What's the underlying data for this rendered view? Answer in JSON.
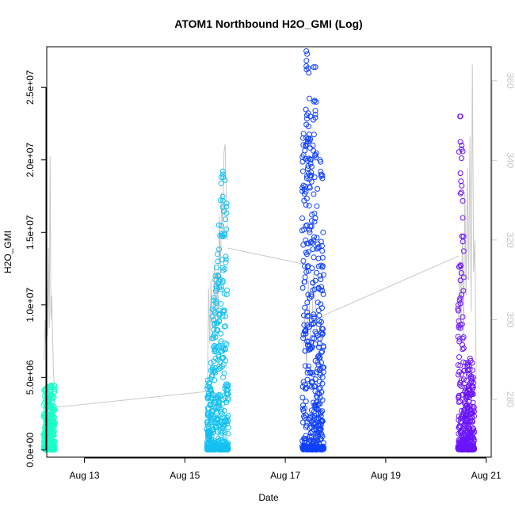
{
  "chart_data": {
    "type": "scatter",
    "title": "ATOM1 Northbound H2O_GMI (Log)",
    "xlabel": "Date",
    "ylabel": "H2O_GMI",
    "y2label": "",
    "xlim": [
      12.25,
      21.1
    ],
    "ylim": [
      -500000.0,
      27800000.0
    ],
    "y2lim": [
      265.5,
      368.5
    ],
    "x_ticks": [
      {
        "value": 13,
        "label": "Aug 13"
      },
      {
        "value": 15,
        "label": "Aug 15"
      },
      {
        "value": 17,
        "label": "Aug 17"
      },
      {
        "value": 19,
        "label": "Aug 19"
      },
      {
        "value": 21,
        "label": "Aug 21"
      }
    ],
    "y_ticks": [
      {
        "value": 0,
        "label": "0.0e+00"
      },
      {
        "value": 5000000,
        "label": "5.0e+06"
      },
      {
        "value": 10000000,
        "label": "1.0e+07"
      },
      {
        "value": 15000000,
        "label": "1.5e+07"
      },
      {
        "value": 20000000,
        "label": "2.0e+07"
      },
      {
        "value": 25000000,
        "label": "2.5e+07"
      }
    ],
    "y2_ticks": [
      {
        "value": 280,
        "label": "280"
      },
      {
        "value": 300,
        "label": "300"
      },
      {
        "value": 320,
        "label": "320"
      },
      {
        "value": 340,
        "label": "340"
      },
      {
        "value": 360,
        "label": "360"
      }
    ],
    "grid": false,
    "legend": "none",
    "series": [
      {
        "color": "#1affc8",
        "x_range": [
          12.2,
          12.4
        ],
        "max_values": [
          4100000,
          4150000,
          4200000,
          4250000,
          4300000,
          4350000,
          4400000,
          4450000,
          4400000,
          4350000,
          4300000,
          4450000
        ]
      },
      {
        "color": "#14c0f0",
        "x_range": [
          15.45,
          15.85
        ],
        "max_values": [
          4800000,
          4600000,
          4900000,
          6000000,
          10000000,
          10500000,
          12000000,
          13500000,
          13000000,
          15500000,
          18800000,
          19000000,
          19200000,
          18600000,
          17000000,
          4500000
        ]
      },
      {
        "color": "#1040ff",
        "x_range": [
          17.35,
          17.75
        ],
        "max_values": [
          21500000,
          21800000,
          21000000,
          27500000,
          27300000,
          26000000,
          23000000,
          20000000,
          21000000,
          26400000,
          26400000,
          24000000,
          18000000,
          14000000,
          12000000,
          20000000,
          19000000,
          15000000
        ]
      },
      {
        "color": "#6a14ff",
        "x_range": [
          20.45,
          20.75
        ],
        "max_values": [
          10000000,
          23000000,
          23000000,
          21000000,
          16000000,
          5500000,
          6000000,
          4800000,
          6000000,
          5800000,
          6300000,
          6000000,
          5500000,
          5000000
        ]
      }
    ],
    "secondary_line": {
      "color": "#c8c8c8",
      "segments": [
        {
          "x_range": [
            12.2,
            12.4
          ],
          "values": [
            290,
            300,
            294,
            312,
            296,
            318,
            298,
            341,
            300,
            306,
            296,
            286,
            284
          ]
        },
        {
          "x_range": [
            15.45,
            15.85
          ],
          "values": [
            282,
            308,
            294,
            310,
            298,
            300,
            314,
            296,
            312,
            300,
            326,
            310,
            332,
            322,
            342,
            344,
            330,
            320
          ]
        },
        {
          "x_range": [
            17.35,
            17.75
          ],
          "values": [
            292,
            302,
            288,
            310,
            296,
            300,
            312,
            304,
            294,
            290,
            298,
            301
          ]
        },
        {
          "x_range": [
            20.45,
            20.8
          ],
          "values": [
            298,
            314,
            300,
            320,
            296,
            332,
            306,
            338,
            310,
            346,
            302,
            364,
            312,
            320,
            285
          ]
        }
      ],
      "connectors": [
        {
          "x": [
            12.42,
            15.45
          ],
          "values": [
            278,
            282
          ]
        },
        {
          "x": [
            15.85,
            17.35
          ],
          "values": [
            318,
            314
          ]
        },
        {
          "x": [
            17.75,
            20.45
          ],
          "values": [
            301,
            316
          ]
        }
      ]
    }
  }
}
